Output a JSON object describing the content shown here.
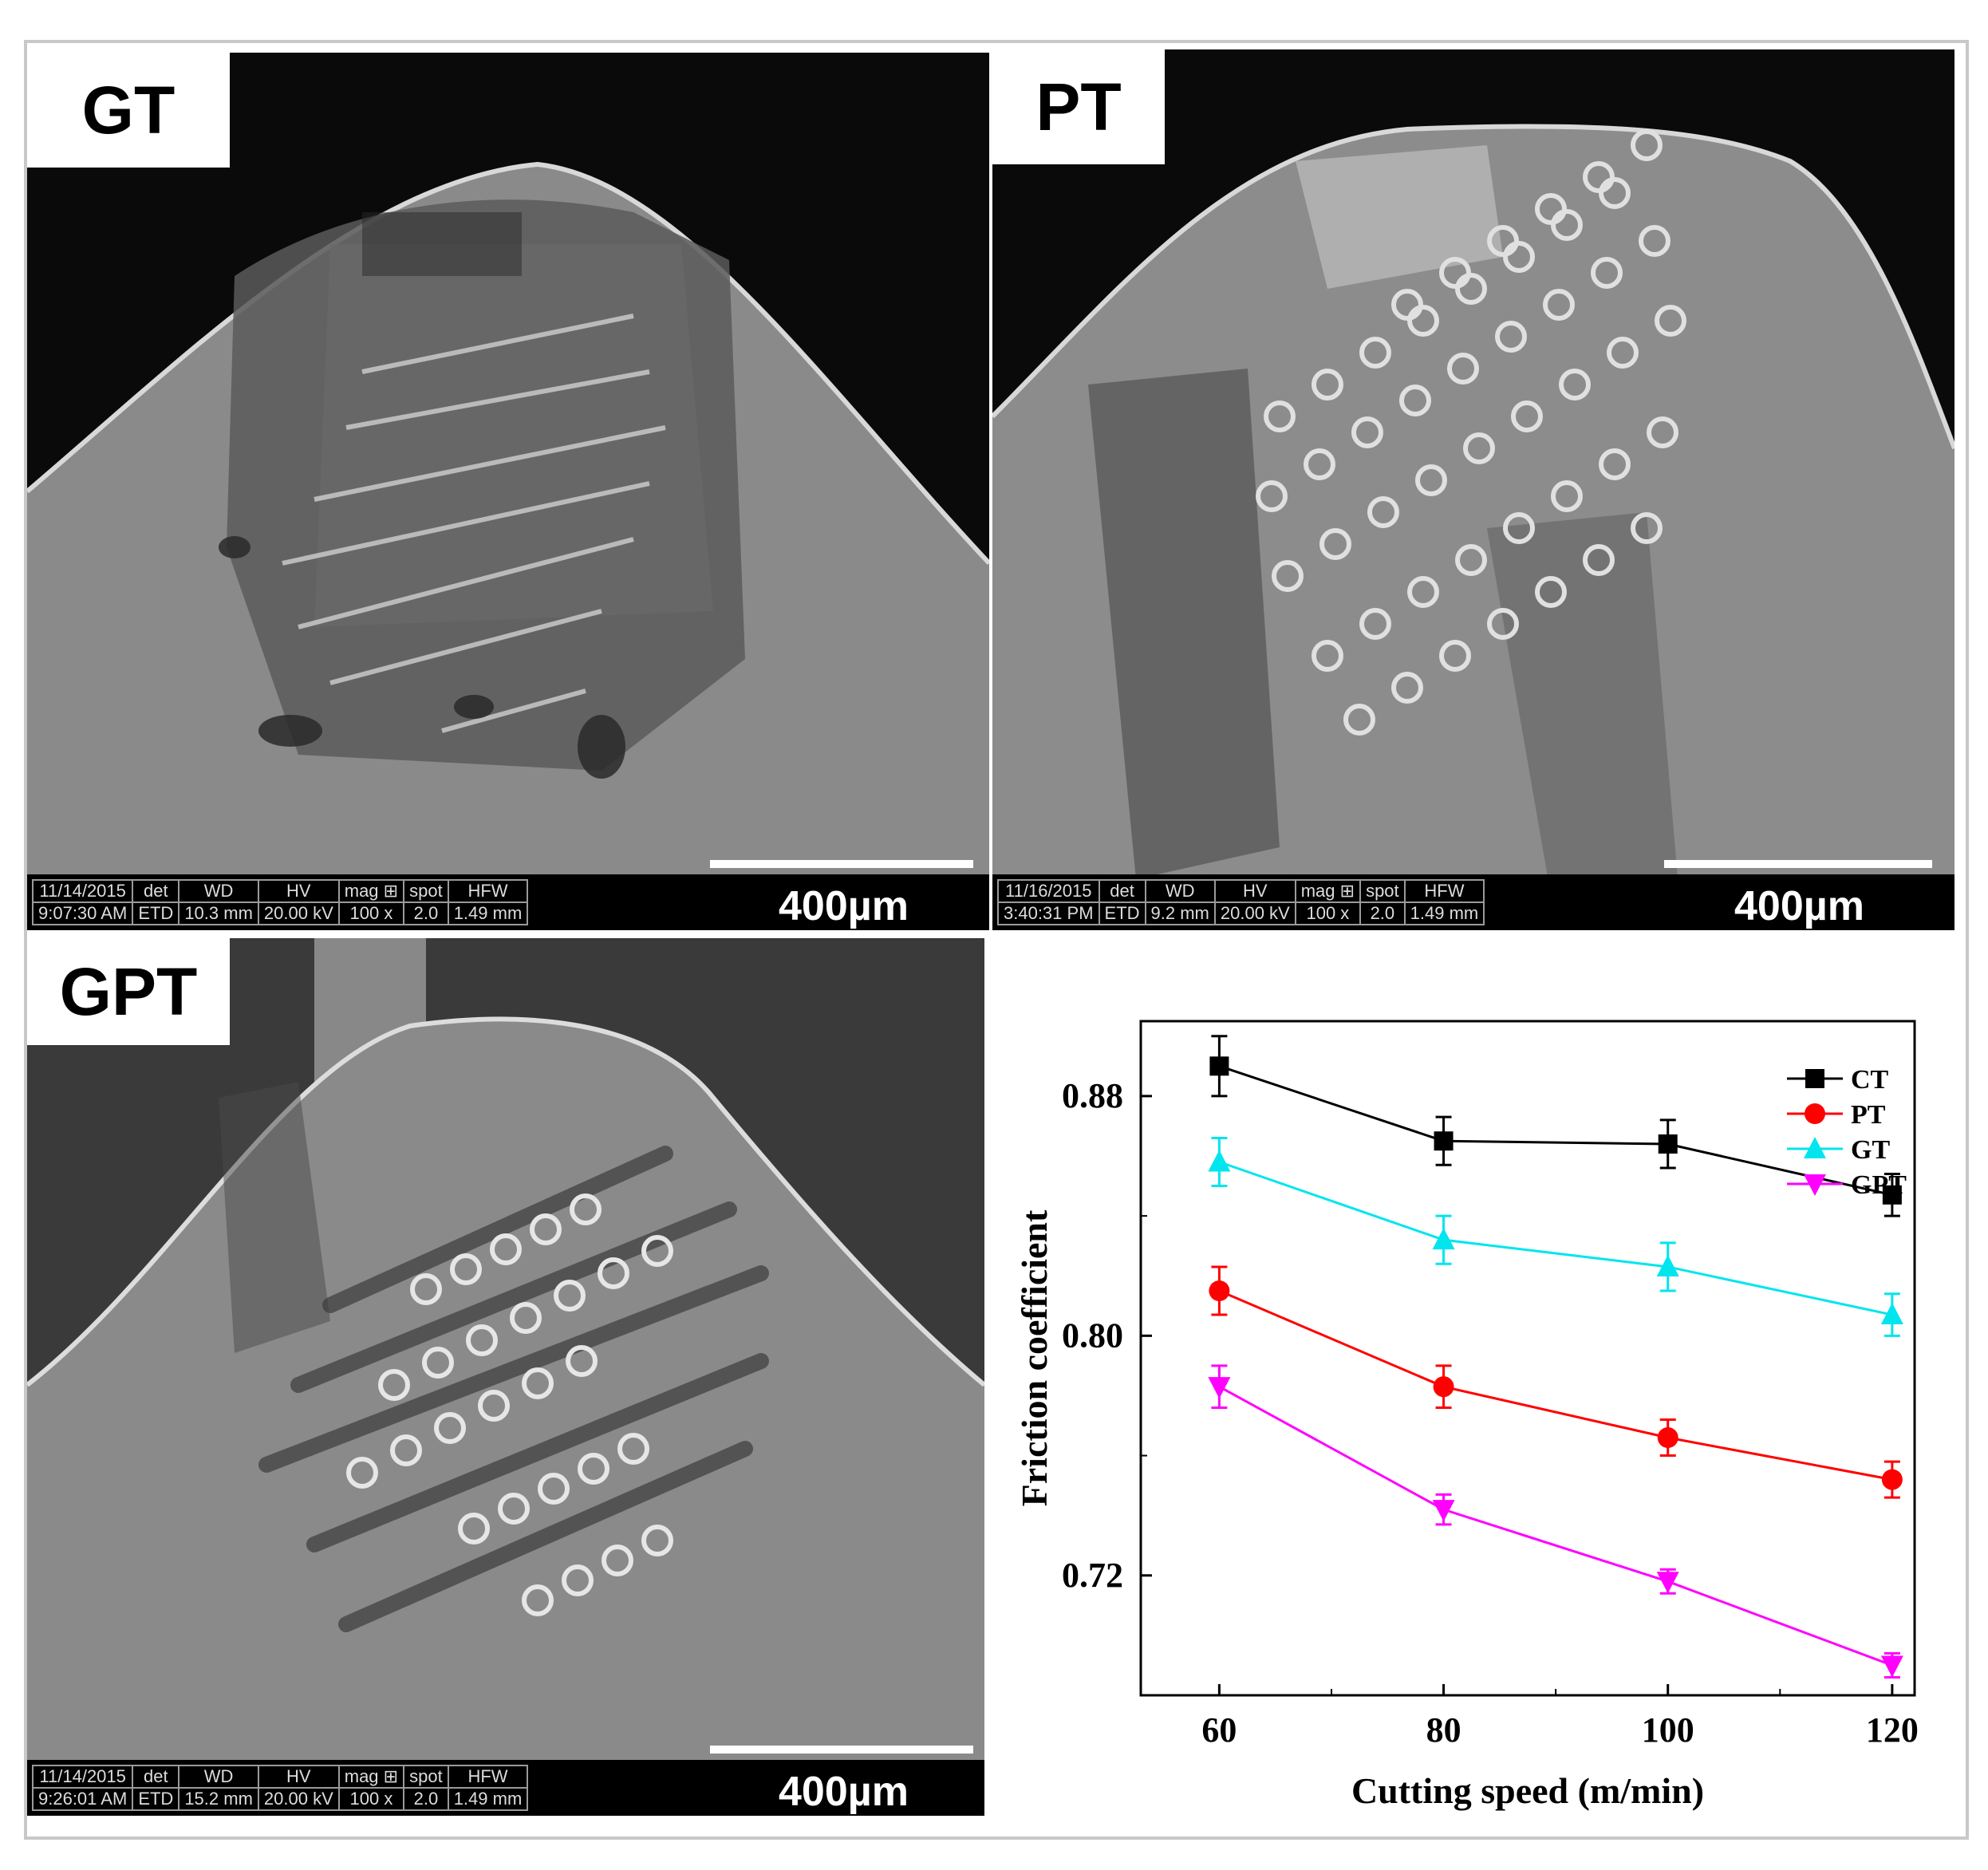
{
  "panels": {
    "gt": {
      "label": "GT",
      "scale_text": "400µm",
      "databar": {
        "date": "11/14/2015",
        "time": "9:07:30 AM",
        "det_h": "det",
        "det": "ETD",
        "wd_h": "WD",
        "wd": "10.3 mm",
        "hv_h": "HV",
        "hv": "20.00 kV",
        "mag_h": "mag ⊞",
        "mag": "100 x",
        "spot_h": "spot",
        "spot": "2.0",
        "hfw_h": "HFW",
        "hfw": "1.49 mm"
      }
    },
    "pt": {
      "label": "PT",
      "scale_text": "400µm",
      "databar": {
        "date": "11/16/2015",
        "time": "3:40:31 PM",
        "det_h": "det",
        "det": "ETD",
        "wd_h": "WD",
        "wd": "9.2 mm",
        "hv_h": "HV",
        "hv": "20.00 kV",
        "mag_h": "mag ⊞",
        "mag": "100 x",
        "spot_h": "spot",
        "spot": "2.0",
        "hfw_h": "HFW",
        "hfw": "1.49 mm"
      }
    },
    "gpt": {
      "label": "GPT",
      "scale_text": "400µm",
      "databar": {
        "date": "11/14/2015",
        "time": "9:26:01 AM",
        "det_h": "det",
        "det": "ETD",
        "wd_h": "WD",
        "wd": "15.2 mm",
        "hv_h": "HV",
        "hv": "20.00 kV",
        "mag_h": "mag ⊞",
        "mag": "100 x",
        "spot_h": "spot",
        "spot": "2.0",
        "hfw_h": "HFW",
        "hfw": "1.49 mm"
      }
    }
  },
  "chart_data": {
    "type": "line",
    "xlabel": "Cutting speed (m/min)",
    "ylabel": "Friction coefficient",
    "x": [
      60,
      80,
      100,
      120
    ],
    "xlim": [
      53,
      122
    ],
    "ylim": [
      0.68,
      0.905
    ],
    "xticks": [
      60,
      80,
      100,
      120
    ],
    "yticks": [
      0.72,
      0.8,
      0.88
    ],
    "ytick_labels": [
      "0.72",
      "0.80",
      "0.88"
    ],
    "legend_position": "top-right",
    "grid": false,
    "series": [
      {
        "name": "CT",
        "color": "#000000",
        "marker": "square",
        "values": [
          0.89,
          0.865,
          0.864,
          0.847
        ],
        "errors": [
          0.01,
          0.008,
          0.008,
          0.007
        ]
      },
      {
        "name": "PT",
        "color": "#ff0000",
        "marker": "circle",
        "values": [
          0.815,
          0.783,
          0.766,
          0.752
        ],
        "errors": [
          0.008,
          0.007,
          0.006,
          0.006
        ]
      },
      {
        "name": "GT",
        "color": "#00e5ee",
        "marker": "triangle-up",
        "values": [
          0.858,
          0.832,
          0.823,
          0.807
        ],
        "errors": [
          0.008,
          0.008,
          0.008,
          0.007
        ]
      },
      {
        "name": "GPT",
        "color": "#ff00ff",
        "marker": "triangle-down",
        "values": [
          0.783,
          0.742,
          0.718,
          0.69
        ],
        "errors": [
          0.007,
          0.005,
          0.004,
          0.004
        ]
      }
    ]
  }
}
